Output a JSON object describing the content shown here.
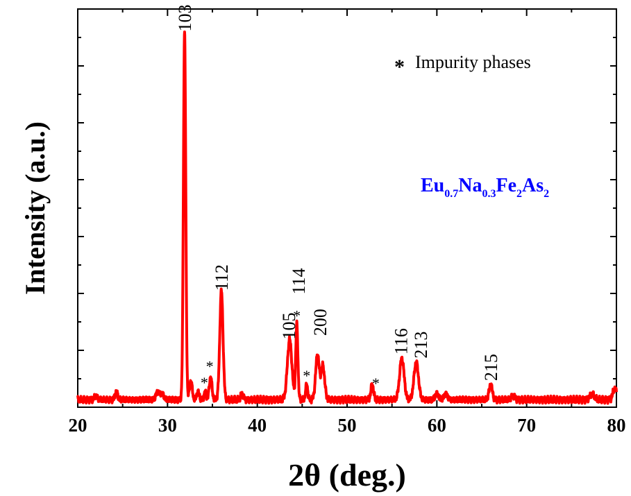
{
  "chart_data": {
    "type": "line",
    "xlabel": "2θ (deg.)",
    "ylabel": "Intensity (a.u.)",
    "xlim": [
      20,
      80
    ],
    "ylim": [
      0,
      1.06
    ],
    "xticks": [
      "20",
      "30",
      "40",
      "50",
      "60",
      "70",
      "80"
    ],
    "y_tick_labels_shown": false,
    "grid": false,
    "series_color": "#ff0000",
    "formula": {
      "parts": [
        {
          "text": "Eu",
          "sub": false
        },
        {
          "text": "0.7",
          "sub": true
        },
        {
          "text": "Na",
          "sub": false
        },
        {
          "text": "0.3",
          "sub": true
        },
        {
          "text": "Fe",
          "sub": false
        },
        {
          "text": "2",
          "sub": true
        },
        {
          "text": "As",
          "sub": false
        },
        {
          "text": "2",
          "sub": true
        }
      ],
      "color": "#0000ff"
    },
    "legend": {
      "symbol": "*",
      "label": "Impurity phases",
      "placement": "top-right"
    },
    "baseline": 0.02,
    "peaks": [
      {
        "x": 22.0,
        "h": 0.01,
        "w": 0.15
      },
      {
        "x": 24.3,
        "h": 0.02,
        "w": 0.15
      },
      {
        "x": 28.9,
        "h": 0.02,
        "w": 0.2
      },
      {
        "x": 29.4,
        "h": 0.015,
        "w": 0.2
      },
      {
        "x": 31.9,
        "h": 0.98,
        "w": 0.13
      },
      {
        "x": 32.6,
        "h": 0.05,
        "w": 0.15
      },
      {
        "x": 33.4,
        "h": 0.02,
        "w": 0.15
      },
      {
        "x": 34.2,
        "h": 0.02,
        "w": 0.12
      },
      {
        "x": 34.8,
        "h": 0.06,
        "w": 0.15
      },
      {
        "x": 36.0,
        "h": 0.29,
        "w": 0.18
      },
      {
        "x": 38.3,
        "h": 0.015,
        "w": 0.15
      },
      {
        "x": 43.6,
        "h": 0.16,
        "w": 0.25
      },
      {
        "x": 44.4,
        "h": 0.2,
        "w": 0.12
      },
      {
        "x": 45.5,
        "h": 0.04,
        "w": 0.12
      },
      {
        "x": 46.7,
        "h": 0.12,
        "w": 0.2
      },
      {
        "x": 47.3,
        "h": 0.09,
        "w": 0.2
      },
      {
        "x": 52.8,
        "h": 0.04,
        "w": 0.15
      },
      {
        "x": 56.1,
        "h": 0.11,
        "w": 0.25
      },
      {
        "x": 57.7,
        "h": 0.1,
        "w": 0.25
      },
      {
        "x": 60.0,
        "h": 0.015,
        "w": 0.2
      },
      {
        "x": 61.0,
        "h": 0.015,
        "w": 0.2
      },
      {
        "x": 66.0,
        "h": 0.04,
        "w": 0.18
      },
      {
        "x": 68.5,
        "h": 0.01,
        "w": 0.2
      },
      {
        "x": 77.3,
        "h": 0.015,
        "w": 0.25
      },
      {
        "x": 79.8,
        "h": 0.03,
        "w": 0.2
      }
    ],
    "peak_labels": [
      {
        "text": "103",
        "x": 31.9,
        "y": 1.0
      },
      {
        "text": "112",
        "x": 36.0,
        "y": 0.31
      },
      {
        "text": "105",
        "x": 43.5,
        "y": 0.18
      },
      {
        "text": "114",
        "x": 44.6,
        "y": 0.3
      },
      {
        "text": "200",
        "x": 47.0,
        "y": 0.19
      },
      {
        "text": "116",
        "x": 56.0,
        "y": 0.14
      },
      {
        "text": "213",
        "x": 58.2,
        "y": 0.13
      },
      {
        "text": "215",
        "x": 66.0,
        "y": 0.07
      }
    ],
    "impurity_stars": [
      {
        "x": 34.1,
        "y": 0.052
      },
      {
        "x": 34.7,
        "y": 0.095
      },
      {
        "x": 44.4,
        "y": 0.23
      },
      {
        "x": 45.5,
        "y": 0.07
      },
      {
        "x": 53.2,
        "y": 0.05
      }
    ]
  }
}
